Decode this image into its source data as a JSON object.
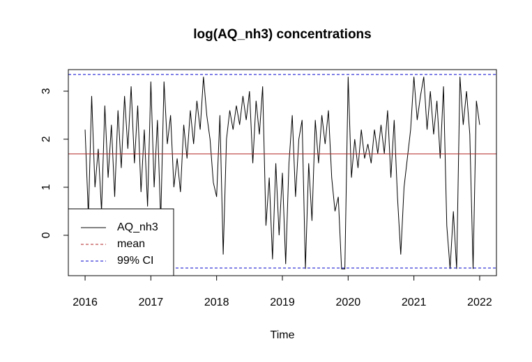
{
  "chart_data": {
    "type": "line",
    "title": "log(AQ_nh3) concentrations",
    "x_label": "Time",
    "x": [
      2016,
      2016.05,
      2016.1,
      2016.15,
      2016.2,
      2016.25,
      2016.3,
      2016.35,
      2016.4,
      2016.45,
      2016.5,
      2016.55,
      2016.6,
      2016.65,
      2016.7,
      2016.75,
      2016.8,
      2016.85,
      2016.9,
      2016.95,
      2017,
      2017.05,
      2017.1,
      2017.15,
      2017.2,
      2017.25,
      2017.3,
      2017.35,
      2017.4,
      2017.45,
      2017.5,
      2017.55,
      2017.6,
      2017.65,
      2017.7,
      2017.75,
      2017.8,
      2017.85,
      2017.9,
      2017.95,
      2018,
      2018.05,
      2018.1,
      2018.15,
      2018.2,
      2018.25,
      2018.3,
      2018.35,
      2018.4,
      2018.45,
      2018.5,
      2018.55,
      2018.6,
      2018.65,
      2018.7,
      2018.75,
      2018.8,
      2018.85,
      2018.9,
      2018.95,
      2019,
      2019.05,
      2019.1,
      2019.15,
      2019.2,
      2019.25,
      2019.3,
      2019.35,
      2019.4,
      2019.45,
      2019.5,
      2019.55,
      2019.6,
      2019.65,
      2019.7,
      2019.75,
      2019.8,
      2019.85,
      2019.9,
      2019.95,
      2020,
      2020.05,
      2020.1,
      2020.15,
      2020.2,
      2020.25,
      2020.3,
      2020.35,
      2020.4,
      2020.45,
      2020.5,
      2020.55,
      2020.6,
      2020.65,
      2020.7,
      2020.75,
      2020.8,
      2020.85,
      2020.9,
      2020.95,
      2021,
      2021.05,
      2021.1,
      2021.15,
      2021.2,
      2021.25,
      2021.3,
      2021.35,
      2021.4,
      2021.45,
      2021.5,
      2021.55,
      2021.6,
      2021.65,
      2021.7,
      2021.75,
      2021.8,
      2021.85,
      2021.9,
      2021.95,
      2022
    ],
    "series": [
      {
        "name": "AQ_nh3",
        "color": "#000000",
        "values": [
          2.2,
          0.4,
          2.9,
          1.0,
          1.8,
          0.5,
          2.7,
          1.2,
          2.3,
          0.8,
          2.6,
          1.4,
          2.9,
          1.8,
          3.1,
          1.5,
          2.7,
          0.9,
          2.2,
          0.6,
          3.2,
          1.0,
          2.4,
          0.3,
          3.2,
          1.9,
          2.5,
          1.0,
          1.6,
          0.9,
          2.3,
          1.6,
          2.6,
          1.9,
          2.8,
          2.2,
          3.3,
          2.5,
          2.0,
          1.1,
          0.8,
          2.5,
          -0.4,
          2.0,
          2.6,
          2.2,
          2.7,
          2.3,
          2.9,
          2.4,
          3.0,
          1.5,
          2.8,
          2.1,
          3.1,
          0.2,
          1.2,
          -0.5,
          1.5,
          0.0,
          1.3,
          -0.6,
          1.5,
          2.5,
          0.8,
          2.0,
          2.4,
          -0.7,
          1.5,
          0.3,
          2.4,
          1.5,
          2.5,
          1.9,
          2.6,
          1.2,
          0.5,
          0.8,
          -0.7,
          -0.7,
          3.3,
          1.2,
          2.0,
          1.4,
          2.2,
          1.6,
          1.9,
          1.5,
          2.2,
          1.7,
          2.3,
          1.7,
          2.6,
          1.2,
          2.4,
          0.8,
          -0.4,
          1.0,
          1.6,
          2.2,
          3.3,
          2.4,
          2.9,
          3.3,
          2.2,
          3.0,
          2.1,
          2.8,
          1.6,
          3.1,
          0.2,
          -0.7,
          0.5,
          -0.7,
          3.3,
          2.3,
          3.0,
          2.1,
          -0.7,
          2.8,
          2.3
        ]
      }
    ],
    "reference_lines": [
      {
        "name": "mean",
        "color": "#b22222",
        "dash": false,
        "values": [
          1.696
        ]
      },
      {
        "name": "99% CI",
        "color": "#0000cd",
        "dash": true,
        "values": [
          3.348,
          -0.681
        ]
      }
    ],
    "xlim": [
      2015.745,
      2022.255
    ],
    "ylim": [
      -0.841,
      3.449
    ],
    "xticks": [
      2016,
      2017,
      2018,
      2019,
      2020,
      2021,
      2022
    ],
    "yticks": [
      0,
      1,
      2,
      3
    ],
    "legend": "bottom-left"
  }
}
